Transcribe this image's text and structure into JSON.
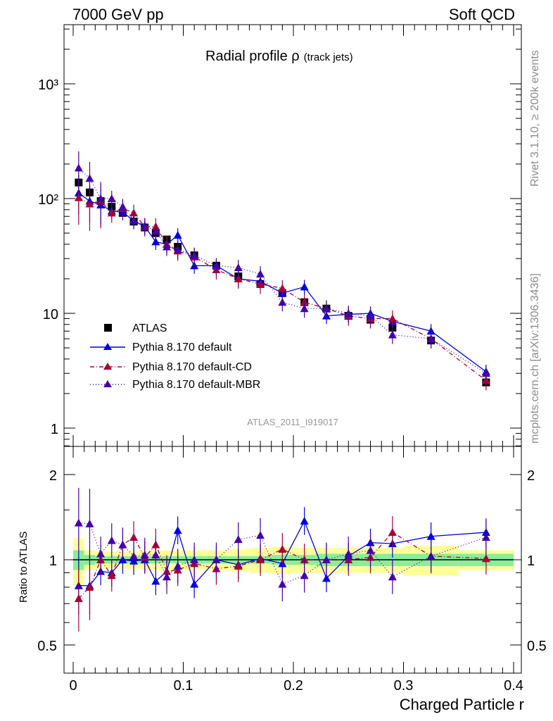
{
  "header": {
    "left": "7000 GeV pp",
    "right": "Soft QCD"
  },
  "side_labels": {
    "top": "Rivet 3.1.10, ≥ 200k events",
    "bottom": "mcplots.cern.ch [arXiv:1306.3436]"
  },
  "analysis_id": "ATLAS_2011_I919017",
  "title": {
    "main": "Radial profile ρ",
    "sub": "(track jets)"
  },
  "legend": {
    "atlas": "ATLAS",
    "default": "Pythia 8.170 default",
    "cd": "Pythia 8.170 default-CD",
    "mbr": "Pythia 8.170 default-MBR"
  },
  "axes": {
    "xlabel": "Charged Particle r",
    "ratio_ylabel": "Ratio to ATLAS",
    "x_ticks": [
      "0",
      "0.1",
      "0.2",
      "0.3",
      "0.4"
    ],
    "main_y_ticks": [
      "1",
      "10",
      "10²",
      "10³"
    ],
    "ratio_y_ticks": [
      "0.5",
      "1",
      "2"
    ]
  },
  "colors": {
    "atlas": "#000000",
    "default": "#0000dd",
    "cd": "#aa0033",
    "mbr": "#4400aa",
    "band_inner": "#88ee99",
    "band_outer": "#ffff99"
  },
  "chart_data": [
    {
      "type": "scatter",
      "title": "Radial profile ρ (track jets)",
      "xlabel": "Charged Particle r",
      "ylabel": "",
      "yscale": "log",
      "xlim": [
        -0.01,
        0.41
      ],
      "ylim": [
        0.7,
        3000
      ],
      "legend_position": "lower-left",
      "x": [
        0.005,
        0.015,
        0.025,
        0.035,
        0.045,
        0.055,
        0.065,
        0.075,
        0.085,
        0.095,
        0.11,
        0.13,
        0.15,
        0.17,
        0.19,
        0.21,
        0.23,
        0.25,
        0.27,
        0.29,
        0.325,
        0.375
      ],
      "series": [
        {
          "name": "ATLAS",
          "style": "markers",
          "values": [
            138,
            113,
            95,
            85,
            75,
            63,
            56,
            50,
            44,
            38,
            32,
            26,
            21,
            18,
            15,
            12.5,
            11,
            9.5,
            8.8,
            7.5,
            5.8,
            2.5
          ]
        },
        {
          "name": "Pythia 8.170 default",
          "style": "solid",
          "values": [
            112,
            95,
            88,
            78,
            76,
            64,
            57,
            42,
            40,
            48,
            26,
            26,
            20,
            19,
            15,
            17,
            9.5,
            9.8,
            10,
            8.5,
            7,
            3.1
          ]
        },
        {
          "name": "Pythia 8.170 default-CD",
          "style": "dashdot",
          "values": [
            102,
            90,
            95,
            75,
            82,
            75,
            57,
            57,
            40,
            35,
            31,
            24,
            20,
            18,
            16.5,
            12.5,
            11,
            9.5,
            9,
            9,
            6,
            2.6
          ]
        },
        {
          "name": "Pythia 8.170 default-MBR",
          "style": "dotted",
          "values": [
            185,
            150,
            100,
            100,
            85,
            65,
            58,
            52,
            38,
            36,
            32,
            26,
            25,
            22,
            12.5,
            11,
            11,
            10,
            9.5,
            6.5,
            6,
            3
          ]
        }
      ]
    },
    {
      "type": "line",
      "title": "",
      "ylabel": "Ratio to ATLAS",
      "xlabel": "Charged Particle r",
      "yscale": "log",
      "ylim": [
        0.42,
        2.3
      ],
      "x": [
        0.005,
        0.015,
        0.025,
        0.035,
        0.045,
        0.055,
        0.065,
        0.075,
        0.085,
        0.095,
        0.11,
        0.13,
        0.15,
        0.17,
        0.19,
        0.21,
        0.23,
        0.25,
        0.27,
        0.29,
        0.325,
        0.375
      ],
      "series": [
        {
          "name": "Pythia 8.170 default",
          "values": [
            0.81,
            0.81,
            0.91,
            0.9,
            1.0,
            0.99,
            1.0,
            0.84,
            0.91,
            1.27,
            0.82,
            1.0,
            0.96,
            1.01,
            0.97,
            1.37,
            0.86,
            1.03,
            1.15,
            1.14,
            1.21,
            1.25
          ]
        },
        {
          "name": "Pythia 8.170 default-CD",
          "values": [
            0.73,
            0.8,
            1.0,
            0.88,
            1.13,
            1.2,
            1.02,
            1.13,
            0.91,
            0.92,
            0.97,
            0.93,
            0.95,
            1.0,
            1.09,
            1.0,
            1.0,
            1.0,
            1.02,
            1.25,
            1.03,
            1.01
          ]
        },
        {
          "name": "Pythia 8.170 default-MBR",
          "values": [
            1.35,
            1.34,
            1.05,
            1.17,
            1.13,
            1.03,
            1.04,
            1.04,
            0.87,
            0.95,
            1.0,
            1.0,
            1.18,
            1.22,
            0.82,
            0.88,
            1.0,
            1.05,
            1.08,
            0.87,
            1.03,
            1.2
          ]
        }
      ]
    }
  ]
}
